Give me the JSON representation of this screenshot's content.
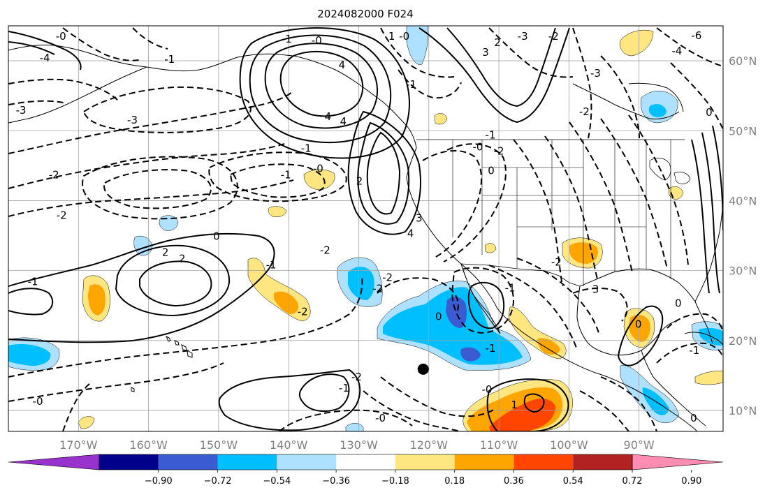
{
  "title": "2024082000 F024",
  "map": {
    "lon_range": [
      -180,
      -78
    ],
    "lat_range": [
      7,
      65
    ],
    "lon_ticks": [
      {
        "value": -170,
        "label": "170°W"
      },
      {
        "value": -160,
        "label": "160°W"
      },
      {
        "value": -150,
        "label": "150°W"
      },
      {
        "value": -140,
        "label": "140°W"
      },
      {
        "value": -130,
        "label": "130°W"
      },
      {
        "value": -120,
        "label": "120°W"
      },
      {
        "value": -110,
        "label": "110°W"
      },
      {
        "value": -100,
        "label": "100°W"
      },
      {
        "value": -90,
        "label": "90°W"
      }
    ],
    "lat_ticks": [
      {
        "value": 10,
        "label": "10°N"
      },
      {
        "value": 20,
        "label": "20°N"
      },
      {
        "value": 30,
        "label": "30°N"
      },
      {
        "value": 40,
        "label": "40°N"
      },
      {
        "value": 50,
        "label": "50°N"
      },
      {
        "value": 60,
        "label": "60°N"
      }
    ],
    "storm_marker": {
      "lon": -120.8,
      "lat": 15.9
    },
    "contour_labels": [
      {
        "text": "0",
        "lon": -150.3,
        "lat": 34.9
      },
      {
        "text": "-1",
        "lon": -176.5,
        "lat": 28.4
      },
      {
        "text": "2",
        "lon": -157.6,
        "lat": 32.6
      },
      {
        "text": "2",
        "lon": -155.2,
        "lat": 31.7
      },
      {
        "text": "-2",
        "lon": -173.5,
        "lat": 43.7
      },
      {
        "text": "-2",
        "lon": -172.4,
        "lat": 37.9
      },
      {
        "text": "-3",
        "lon": -162.3,
        "lat": 51.5
      },
      {
        "text": "-3",
        "lon": -178.2,
        "lat": 52.9
      },
      {
        "text": "-1",
        "lon": -137.5,
        "lat": 47.5
      },
      {
        "text": "-0",
        "lon": -135.8,
        "lat": 44.6
      },
      {
        "text": "-1",
        "lon": -140.4,
        "lat": 43.7
      },
      {
        "text": "-1",
        "lon": -142.5,
        "lat": 30.8
      },
      {
        "text": "-2",
        "lon": -138.0,
        "lat": 24.1
      },
      {
        "text": "-2",
        "lon": -134.8,
        "lat": 32.9
      },
      {
        "text": "-2",
        "lon": -127.3,
        "lat": 27.4
      },
      {
        "text": "-2",
        "lon": -125.9,
        "lat": 29.0
      },
      {
        "text": "1",
        "lon": -140.0,
        "lat": 63.1
      },
      {
        "text": "-0",
        "lon": -136.0,
        "lat": 62.9
      },
      {
        "text": "4",
        "lon": -132.4,
        "lat": 59.4
      },
      {
        "text": "4",
        "lon": -134.4,
        "lat": 52.0
      },
      {
        "text": "4",
        "lon": -132.2,
        "lat": 51.3
      },
      {
        "text": "2",
        "lon": -129.9,
        "lat": 42.8
      },
      {
        "text": "3",
        "lon": -121.4,
        "lat": 37.5
      },
      {
        "text": "4",
        "lon": -122.6,
        "lat": 35.3
      },
      {
        "text": "-0",
        "lon": -113.0,
        "lat": 47.7
      },
      {
        "text": "-1",
        "lon": -111.2,
        "lat": 49.4
      },
      {
        "text": "0",
        "lon": -111.1,
        "lat": 44.3
      },
      {
        "text": "-2",
        "lon": -110.0,
        "lat": 47.1
      },
      {
        "text": "-3",
        "lon": -106.6,
        "lat": 63.5
      },
      {
        "text": "3",
        "lon": -111.9,
        "lat": 61.2
      },
      {
        "text": "-0",
        "lon": -123.5,
        "lat": 63.5
      },
      {
        "text": "-1",
        "lon": -122.5,
        "lat": 56.6
      },
      {
        "text": "-2",
        "lon": -102.2,
        "lat": 63.5
      },
      {
        "text": "-3",
        "lon": -96.2,
        "lat": 58.2
      },
      {
        "text": "-2",
        "lon": -97.8,
        "lat": 52.7
      },
      {
        "text": "3",
        "lon": -96.2,
        "lat": 27.3
      },
      {
        "text": "-2",
        "lon": -101.8,
        "lat": 31.2
      },
      {
        "text": "-1",
        "lon": -108.4,
        "lat": 27.5
      },
      {
        "text": "-1",
        "lon": -111.2,
        "lat": 18.9
      },
      {
        "text": "0",
        "lon": -118.6,
        "lat": 23.4
      },
      {
        "text": "-0",
        "lon": -111.7,
        "lat": 13.0
      },
      {
        "text": "1",
        "lon": -107.8,
        "lat": 10.8
      },
      {
        "text": "0",
        "lon": -90.1,
        "lat": 22.3
      },
      {
        "text": "0",
        "lon": -84.4,
        "lat": 25.3
      },
      {
        "text": "-1",
        "lon": -82.1,
        "lat": 18.6
      },
      {
        "text": "0",
        "lon": -82.2,
        "lat": 8.9
      },
      {
        "text": "-6",
        "lon": -81.8,
        "lat": 63.6
      },
      {
        "text": "-4",
        "lon": -84.6,
        "lat": 61.4
      },
      {
        "text": "-1",
        "lon": -157.0,
        "lat": 60.2
      },
      {
        "text": "-4",
        "lon": -174.8,
        "lat": 60.4
      },
      {
        "text": "-0",
        "lon": -172.5,
        "lat": 63.5
      },
      {
        "text": "-0",
        "lon": -175.8,
        "lat": 11.3
      },
      {
        "text": "-1",
        "lon": -132.1,
        "lat": 13.2
      },
      {
        "text": "-2",
        "lon": -130.3,
        "lat": 14.8
      },
      {
        "text": "-0",
        "lon": -126.9,
        "lat": 8.9
      },
      {
        "text": "1",
        "lon": -125.3,
        "lat": 63.5
      },
      {
        "text": "2",
        "lon": -110.2,
        "lat": 62.6
      },
      {
        "text": "0",
        "lon": -80.0,
        "lat": 52.6
      }
    ]
  },
  "colorbar": {
    "colors": [
      "#9932cc",
      "#00008b",
      "#3a5bd1",
      "#00bfff",
      "#aee1ff",
      "#ffffff",
      "#ffe680",
      "#ffa500",
      "#ff4500",
      "#b22222",
      "#ff8cb3"
    ],
    "labels": [
      "−0.90",
      "−0.72",
      "−0.54",
      "−0.36",
      "−0.18",
      "0.18",
      "0.36",
      "0.54",
      "0.72",
      "0.90"
    ]
  },
  "fill_colors": {
    "light_blue": "#aee1ff",
    "blue": "#00bfff",
    "mid_blue": "#3a5bd1",
    "yellow": "#ffe680",
    "orange": "#ffa500",
    "red": "#ff4500"
  }
}
